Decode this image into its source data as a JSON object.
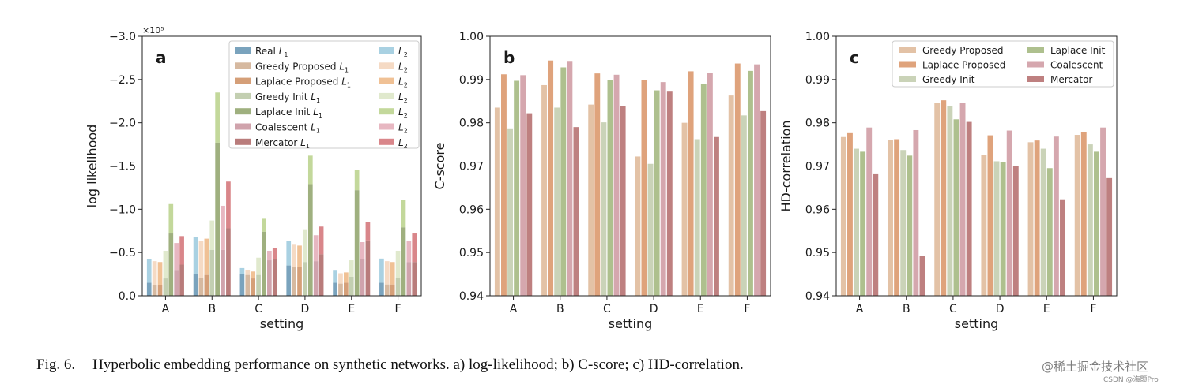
{
  "caption": {
    "label": "Fig. 6.",
    "text": "Hyperbolic embedding performance on synthetic networks. a) log-likelihood; b) C-score; c) HD-correlation."
  },
  "watermark": {
    "line1": "@稀土掘金技术社区",
    "line2": "CSDN @海颢Pro"
  },
  "chart_data": [
    {
      "type": "bar",
      "panel_label": "a",
      "title": "",
      "xlabel": "setting",
      "ylabel": "log likelihood",
      "offset_text": "×10⁵",
      "y_inverted": true,
      "ylim": [
        0.0,
        -3.0
      ],
      "y_ticks": [
        0.0,
        -0.5,
        -1.0,
        -1.5,
        -2.0,
        -2.5,
        -3.0
      ],
      "y_tick_labels": [
        "0.0",
        "−0.5",
        "−1.0",
        "−1.5",
        "−2.0",
        "−2.5",
        "−3.0"
      ],
      "categories": [
        "A",
        "B",
        "C",
        "D",
        "E",
        "F"
      ],
      "legend_placement": "top-right",
      "legend_columns": 2,
      "series": [
        {
          "name": "Real",
          "sub": "1",
          "l2_name": "L",
          "l2_sub": "2",
          "color_l1": "#7aa3bd",
          "color_l2": "#a9d1e2",
          "l1": [
            -0.15,
            -0.25,
            -0.25,
            -0.35,
            -0.15,
            -0.15
          ],
          "total": [
            -0.42,
            -0.68,
            -0.32,
            -0.63,
            -0.29,
            -0.43
          ]
        },
        {
          "name": "Greedy Proposed",
          "sub": "1",
          "l2_name": "L",
          "l2_sub": "2",
          "color_l1": "#d6b9a0",
          "color_l2": "#f5dac4",
          "l1": [
            -0.12,
            -0.21,
            -0.24,
            -0.33,
            -0.14,
            -0.13
          ],
          "total": [
            -0.4,
            -0.63,
            -0.3,
            -0.59,
            -0.26,
            -0.4
          ]
        },
        {
          "name": "Laplace Proposed",
          "sub": "1",
          "l2_name": "L",
          "l2_sub": "2",
          "color_l1": "#d59f78",
          "color_l2": "#f0c195",
          "l1": [
            -0.12,
            -0.24,
            -0.2,
            -0.33,
            -0.15,
            -0.13
          ],
          "total": [
            -0.39,
            -0.66,
            -0.28,
            -0.58,
            -0.27,
            -0.39
          ]
        },
        {
          "name": "Greedy Init",
          "sub": "1",
          "l2_name": "L",
          "l2_sub": "2",
          "color_l1": "#c3cfb1",
          "color_l2": "#e0e9cd",
          "l1": [
            -0.2,
            -0.53,
            -0.24,
            -0.39,
            -0.22,
            -0.21
          ],
          "total": [
            -0.52,
            -0.87,
            -0.44,
            -0.76,
            -0.41,
            -0.52
          ]
        },
        {
          "name": "Laplace Init",
          "sub": "1",
          "l2_name": "L",
          "l2_sub": "2",
          "color_l1": "#9fb07f",
          "color_l2": "#c3d89b",
          "l1": [
            -0.72,
            -1.77,
            -0.74,
            -1.29,
            -1.22,
            -0.79
          ],
          "total": [
            -1.06,
            -2.35,
            -0.89,
            -1.62,
            -1.45,
            -1.11
          ]
        },
        {
          "name": "Coalescent",
          "sub": "1",
          "l2_name": "L",
          "l2_sub": "2",
          "color_l1": "#d0a3ac",
          "color_l2": "#e7b7c1",
          "l1": [
            -0.29,
            -0.53,
            -0.41,
            -0.4,
            -0.42,
            -0.39
          ],
          "total": [
            -0.61,
            -1.04,
            -0.52,
            -0.7,
            -0.62,
            -0.63
          ]
        },
        {
          "name": "Mercator",
          "sub": "1",
          "l2_name": "L",
          "l2_sub": "2",
          "color_l1": "#b97c7b",
          "color_l2": "#d9868a",
          "l1": [
            -0.36,
            -0.78,
            -0.42,
            -0.48,
            -0.64,
            -0.39
          ],
          "total": [
            -0.69,
            -1.32,
            -0.55,
            -0.8,
            -0.85,
            -0.72
          ]
        }
      ]
    },
    {
      "type": "bar",
      "panel_label": "b",
      "title": "",
      "xlabel": "setting",
      "ylabel": "C-score",
      "ylim": [
        0.94,
        1.0
      ],
      "y_ticks": [
        0.94,
        0.95,
        0.96,
        0.97,
        0.98,
        0.99,
        1.0
      ],
      "y_tick_labels": [
        "0.94",
        "0.95",
        "0.96",
        "0.97",
        "0.98",
        "0.99",
        "1.00"
      ],
      "categories": [
        "A",
        "B",
        "C",
        "D",
        "E",
        "F"
      ],
      "series": [
        {
          "name": "Greedy Proposed",
          "color": "#e3c2a6",
          "values": [
            0.9835,
            0.9887,
            0.9842,
            0.9722,
            0.98,
            0.9863
          ]
        },
        {
          "name": "Laplace Proposed",
          "color": "#dfa37c",
          "values": [
            0.9912,
            0.9944,
            0.9914,
            0.9898,
            0.9919,
            0.9937
          ]
        },
        {
          "name": "Greedy Init",
          "color": "#cad3b8",
          "values": [
            0.9787,
            0.9835,
            0.9801,
            0.9705,
            0.9762,
            0.9817
          ]
        },
        {
          "name": "Laplace Init",
          "color": "#aec08e",
          "values": [
            0.9897,
            0.9928,
            0.9899,
            0.9875,
            0.989,
            0.992
          ]
        },
        {
          "name": "Coalescent",
          "color": "#d5a7ae",
          "values": [
            0.991,
            0.9943,
            0.9911,
            0.9894,
            0.9915,
            0.9935
          ]
        },
        {
          "name": "Mercator",
          "color": "#be8080",
          "values": [
            0.9822,
            0.979,
            0.9838,
            0.9872,
            0.9767,
            0.9827
          ]
        }
      ]
    },
    {
      "type": "bar",
      "panel_label": "c",
      "title": "",
      "xlabel": "setting",
      "ylabel": "HD-correlation",
      "ylim": [
        0.94,
        1.0
      ],
      "y_ticks": [
        0.94,
        0.95,
        0.96,
        0.97,
        0.98,
        0.99,
        1.0
      ],
      "y_tick_labels": [
        "0.94",
        "0.95",
        "0.96",
        "0.97",
        "0.98",
        "0.99",
        "1.00"
      ],
      "categories": [
        "A",
        "B",
        "C",
        "D",
        "E",
        "F"
      ],
      "legend_placement": "top-right",
      "legend_columns": 2,
      "series": [
        {
          "name": "Greedy Proposed",
          "color": "#e3c2a6",
          "values": [
            0.9767,
            0.976,
            0.9845,
            0.9725,
            0.9755,
            0.9772
          ]
        },
        {
          "name": "Laplace Proposed",
          "color": "#dfa37c",
          "values": [
            0.9776,
            0.9762,
            0.9852,
            0.9771,
            0.9759,
            0.9778
          ]
        },
        {
          "name": "Greedy Init",
          "color": "#cad3b8",
          "values": [
            0.974,
            0.9737,
            0.9838,
            0.9711,
            0.974,
            0.975
          ]
        },
        {
          "name": "Laplace Init",
          "color": "#aec08e",
          "values": [
            0.9733,
            0.9724,
            0.9808,
            0.971,
            0.9695,
            0.9733
          ]
        },
        {
          "name": "Coalescent",
          "color": "#d5a7ae",
          "values": [
            0.9789,
            0.9783,
            0.9846,
            0.9782,
            0.9768,
            0.9789
          ]
        },
        {
          "name": "Mercator",
          "color": "#be8080",
          "values": [
            0.9681,
            0.9493,
            0.9802,
            0.97,
            0.9623,
            0.9672
          ]
        }
      ]
    }
  ]
}
